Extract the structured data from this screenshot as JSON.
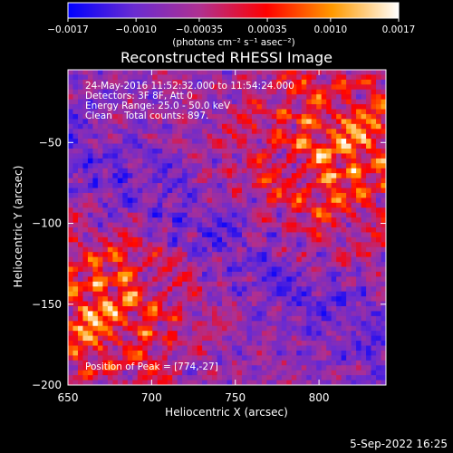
{
  "chart_data": {
    "type": "heatmap",
    "title": "Reconstructed RHESSI Image",
    "xlabel": "Heliocentric X (arcsec)",
    "ylabel": "Heliocentric Y (arcsec)",
    "xlim": [
      650,
      840
    ],
    "ylim": [
      -200,
      -5
    ],
    "x_ticks": [
      650,
      700,
      750,
      800
    ],
    "y_ticks": [
      -50,
      -100,
      -150,
      -200
    ],
    "x_tick_labels": [
      "650",
      "700",
      "750",
      "800"
    ],
    "y_tick_labels": [
      "−50",
      "−100",
      "−150",
      "−200"
    ],
    "colorbar": {
      "range": [
        -0.0017,
        0.0017
      ],
      "ticks": [
        -0.0017,
        -0.001,
        -0.00035,
        0.00035,
        0.001,
        0.0017
      ],
      "tick_labels": [
        "−0.0017",
        "−0.0010",
        "−0.00035",
        "0.00035",
        "0.0010",
        "0.0017"
      ],
      "units_label": "(photons cm⁻² s⁻¹ asec⁻²)",
      "colors": [
        "#0000ff",
        "#6a2bd1",
        "#b03090",
        "#ff0000",
        "#ff9a00",
        "#ffffff"
      ]
    },
    "annotations": [
      "24-May-2016 11:52:32.000 to 11:54:24.000",
      "Detectors: 3F 8F, Att 0",
      "Energy Range: 25.0 - 50.0 keV",
      "Clean    Total counts: 897.",
      "Position of Peak = [774,-27]"
    ],
    "peak_position": [
      774,
      -27
    ],
    "footer_date": "5-Sep-2022 16:25"
  }
}
